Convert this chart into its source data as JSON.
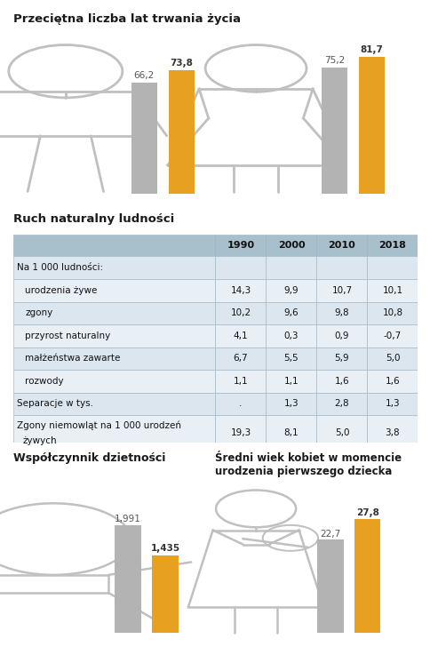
{
  "title1": "Przeciętna liczba lat trwania życia",
  "title2": "Ruch naturalny ludności",
  "title3": "Współczynnik dzietności",
  "title4": "Średni wiek kobiet w momencie\nurodzenia pierwszego dziecka",
  "life_men_1990": 66.2,
  "life_men_2018": 73.8,
  "life_women_1990": 75.2,
  "life_women_2018": 81.7,
  "fertility_1990": 1.991,
  "fertility_2018": 1.435,
  "age_1990": 22.7,
  "age_2017": 27.8,
  "table_headers": [
    "",
    "1990",
    "2000",
    "2010",
    "2018"
  ],
  "table_rows": [
    [
      "Na 1 000 ludności:",
      "",
      "",
      "",
      ""
    ],
    [
      "urodzenia żywe",
      "14,3",
      "9,9",
      "10,7",
      "10,1"
    ],
    [
      "zgony",
      "10,2",
      "9,6",
      "9,8",
      "10,8"
    ],
    [
      "przyrost naturalny",
      "4,1",
      "0,3",
      "0,9",
      "-0,7"
    ],
    [
      "małżeństwa zawarte",
      "6,7",
      "5,5",
      "5,9",
      "5,0"
    ],
    [
      "rozwody",
      "1,1",
      "1,1",
      "1,6",
      "1,6"
    ],
    [
      "Separacje w tys.",
      ".",
      "1,3",
      "2,8",
      "1,3"
    ],
    [
      "Zgony niemowląt na 1 000 urodzeń\nżywych",
      "19,3",
      "8,1",
      "5,0",
      "3,8"
    ]
  ],
  "color_gray": "#b3b3b3",
  "color_orange": "#e8a020",
  "color_header_bg": "#a8bfcc",
  "color_row_bg1": "#dbe6ef",
  "color_row_bg2": "#e8eff5",
  "color_title": "#1a1a1a",
  "color_border": "#9ab0bf",
  "color_figure": "#c0c0c0",
  "bg_color": "#ffffff"
}
